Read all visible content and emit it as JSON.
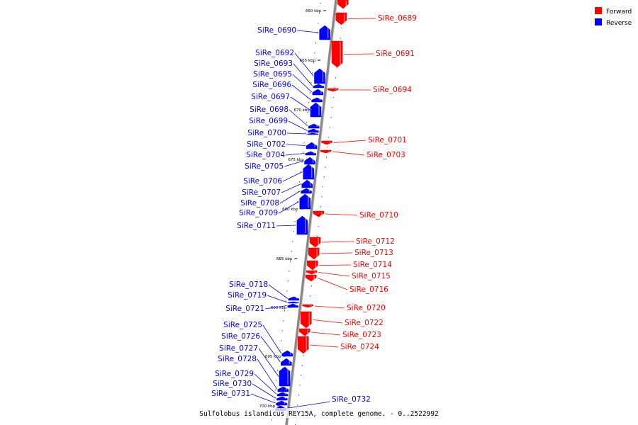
{
  "legend": {
    "forward_label": "Forward",
    "reverse_label": "Reverse",
    "forward_color": "#ff0000",
    "reverse_color": "#0000ff"
  },
  "caption": "Sulfolobus islandicus REY15A, complete genome. - 0..2522992",
  "ticks": [
    "660 kbp",
    "665 kbp",
    "670 kbp",
    "675 kbp",
    "680 kbp",
    "685 kbp",
    "690 kbp",
    "695 kbp",
    "700 kbp"
  ],
  "forward_genes": [
    "SiRe_0689",
    "SiRe_0691",
    "SiRe_0694",
    "SiRe_0701",
    "SiRe_0703",
    "SiRe_0710",
    "SiRe_0712",
    "SiRe_0713",
    "SiRe_0714",
    "SiRe_0715",
    "SiRe_0716",
    "SiRe_0720",
    "SiRe_0722",
    "SiRe_0723",
    "SiRe_0724"
  ],
  "reverse_genes": [
    "SiRe_0690",
    "SiRe_0692",
    "SiRe_0693",
    "SiRe_0695",
    "SiRe_0696",
    "SiRe_0697",
    "SiRe_0698",
    "SiRe_0699",
    "SiRe_0700",
    "SiRe_0702",
    "SiRe_0704",
    "SiRe_0705",
    "SiRe_0706",
    "SiRe_0707",
    "SiRe_0708",
    "SiRe_0709",
    "SiRe_0711",
    "SiRe_0718",
    "SiRe_0719",
    "SiRe_0721",
    "SiRe_0725",
    "SiRe_0726",
    "SiRe_0727",
    "SiRe_0728",
    "SiRe_0729",
    "SiRe_0730",
    "SiRe_0731",
    "SiRe_0732"
  ]
}
